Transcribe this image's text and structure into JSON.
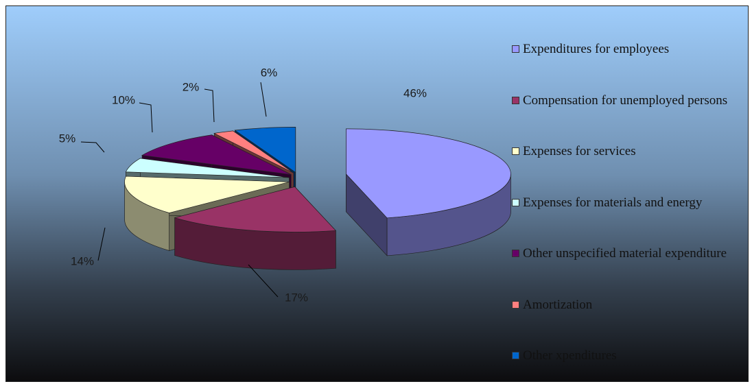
{
  "chart_data": {
    "type": "pie3d",
    "categories": [
      "Expenditures for employees",
      "Compensation for unemployed persons",
      "Expenses for services",
      "Expenses for materials and energy",
      "Other unspecified material expenditure",
      "Amortization",
      "Other xpenditures"
    ],
    "values": [
      46,
      17,
      14,
      5,
      10,
      2,
      6
    ],
    "value_labels": [
      "46%",
      "17%",
      "14%",
      "5%",
      "10%",
      "2%",
      "6%"
    ],
    "colors": [
      "#9999ff",
      "#993366",
      "#ffffcc",
      "#ccffff",
      "#660066",
      "#ff8080",
      "#0066cc"
    ],
    "legend": "right"
  }
}
